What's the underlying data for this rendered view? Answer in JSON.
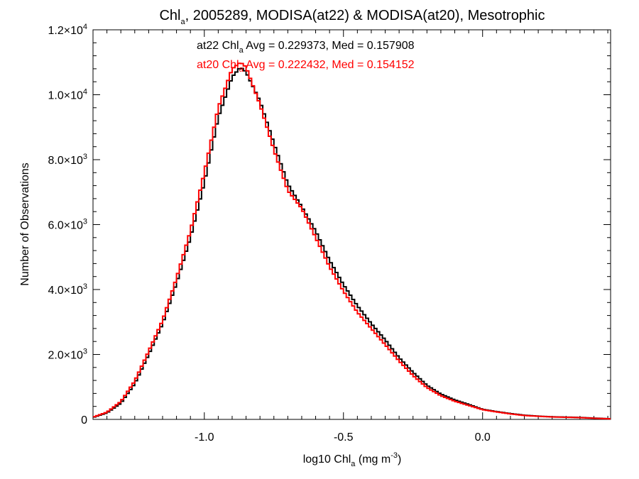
{
  "chart_data": {
    "type": "line",
    "title": {
      "pre": "Chl",
      "sub": "a",
      "post": ", 2005289, MODISA(at22) & MODISA(at20), Mesotrophic"
    },
    "xlabel": {
      "pre": "log10 Chl",
      "sub": "a",
      "mid": " (mg m",
      "sup": "-3",
      "post": ")"
    },
    "ylabel": "Number of Observations",
    "xlim": [
      -1.4,
      0.46
    ],
    "ylim": [
      0,
      12000
    ],
    "x_ticks": [
      {
        "value": -1.0,
        "label": "-1.0"
      },
      {
        "value": -0.5,
        "label": "-0.5"
      },
      {
        "value": 0.0,
        "label": "0.0"
      }
    ],
    "y_ticks": [
      {
        "value": 0,
        "label": "0",
        "exp": ""
      },
      {
        "value": 2000,
        "label": "2.0×10",
        "exp": "3"
      },
      {
        "value": 4000,
        "label": "4.0×10",
        "exp": "3"
      },
      {
        "value": 6000,
        "label": "6.0×10",
        "exp": "3"
      },
      {
        "value": 8000,
        "label": "8.0×10",
        "exp": "3"
      },
      {
        "value": 10000,
        "label": "1.0×10",
        "exp": "4"
      },
      {
        "value": 12000,
        "label": "1.2×10",
        "exp": "4"
      }
    ],
    "grid": false,
    "series": [
      {
        "name": "at22",
        "color": "#000000",
        "label": {
          "pre": "at22 Chl",
          "sub": "a",
          "post": " Avg = 0.229373, Med = 0.157908"
        },
        "points": [
          [
            -1.4,
            60
          ],
          [
            -1.35,
            200
          ],
          [
            -1.3,
            500
          ],
          [
            -1.25,
            1100
          ],
          [
            -1.2,
            2000
          ],
          [
            -1.15,
            2950
          ],
          [
            -1.1,
            4200
          ],
          [
            -1.05,
            5600
          ],
          [
            -1.0,
            7300
          ],
          [
            -0.95,
            9300
          ],
          [
            -0.9,
            10550
          ],
          [
            -0.87,
            10850
          ],
          [
            -0.85,
            10700
          ],
          [
            -0.8,
            9800
          ],
          [
            -0.75,
            8500
          ],
          [
            -0.7,
            7250
          ],
          [
            -0.65,
            6550
          ],
          [
            -0.6,
            5800
          ],
          [
            -0.55,
            4900
          ],
          [
            -0.5,
            4150
          ],
          [
            -0.45,
            3500
          ],
          [
            -0.4,
            2950
          ],
          [
            -0.35,
            2450
          ],
          [
            -0.3,
            1900
          ],
          [
            -0.25,
            1450
          ],
          [
            -0.2,
            1050
          ],
          [
            -0.15,
            780
          ],
          [
            -0.1,
            600
          ],
          [
            -0.05,
            460
          ],
          [
            0.0,
            310
          ],
          [
            0.05,
            240
          ],
          [
            0.1,
            180
          ],
          [
            0.15,
            130
          ],
          [
            0.2,
            100
          ],
          [
            0.25,
            80
          ],
          [
            0.3,
            70
          ],
          [
            0.35,
            60
          ],
          [
            0.4,
            40
          ],
          [
            0.46,
            20
          ]
        ]
      },
      {
        "name": "at20",
        "color": "#ff0000",
        "label": {
          "pre": "at20 Chl",
          "sub": "a",
          "post": " Avg = 0.222432, Med = 0.154152"
        },
        "points": [
          [
            -1.4,
            70
          ],
          [
            -1.35,
            220
          ],
          [
            -1.3,
            550
          ],
          [
            -1.25,
            1180
          ],
          [
            -1.2,
            2100
          ],
          [
            -1.15,
            3050
          ],
          [
            -1.1,
            4350
          ],
          [
            -1.05,
            5800
          ],
          [
            -1.0,
            7600
          ],
          [
            -0.95,
            9600
          ],
          [
            -0.9,
            10800
          ],
          [
            -0.87,
            11000
          ],
          [
            -0.85,
            10850
          ],
          [
            -0.8,
            9700
          ],
          [
            -0.75,
            8300
          ],
          [
            -0.7,
            7050
          ],
          [
            -0.65,
            6500
          ],
          [
            -0.6,
            5600
          ],
          [
            -0.55,
            4700
          ],
          [
            -0.5,
            3950
          ],
          [
            -0.45,
            3300
          ],
          [
            -0.4,
            2800
          ],
          [
            -0.35,
            2300
          ],
          [
            -0.3,
            1800
          ],
          [
            -0.25,
            1350
          ],
          [
            -0.2,
            980
          ],
          [
            -0.15,
            730
          ],
          [
            -0.1,
            560
          ],
          [
            -0.05,
            430
          ],
          [
            0.0,
            300
          ],
          [
            0.05,
            230
          ],
          [
            0.1,
            170
          ],
          [
            0.15,
            120
          ],
          [
            0.2,
            95
          ],
          [
            0.25,
            75
          ],
          [
            0.3,
            65
          ],
          [
            0.35,
            55
          ],
          [
            0.4,
            35
          ],
          [
            0.46,
            18
          ]
        ]
      }
    ]
  }
}
